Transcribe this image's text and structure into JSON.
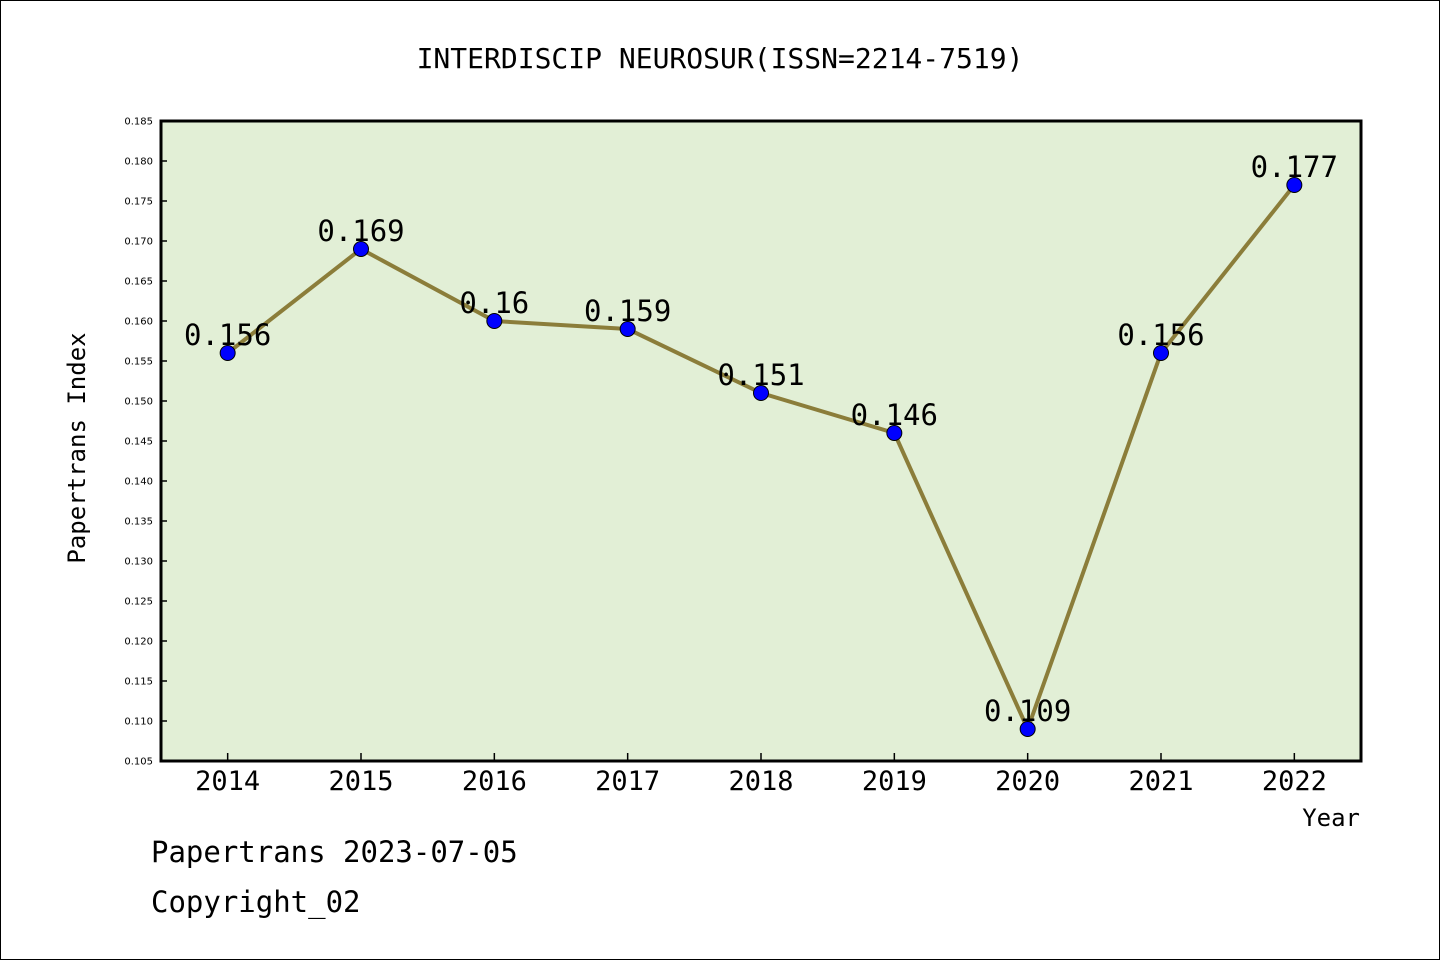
{
  "chart_data": {
    "type": "line",
    "title": "INTERDISCIP NEUROSUR(ISSN=2214-7519)",
    "xlabel": "Year",
    "ylabel": "Papertrans Index",
    "categories": [
      "2014",
      "2015",
      "2016",
      "2017",
      "2018",
      "2019",
      "2020",
      "2021",
      "2022"
    ],
    "values": [
      0.156,
      0.169,
      0.16,
      0.159,
      0.151,
      0.146,
      0.109,
      0.156,
      0.177
    ],
    "data_labels": [
      "0.156",
      "0.169",
      "0.16",
      "0.159",
      "0.151",
      "0.146",
      "0.109",
      "0.156",
      "0.177"
    ],
    "ylim": [
      0.105,
      0.185
    ],
    "yticks": [
      "0.105",
      "0.110",
      "0.115",
      "0.120",
      "0.125",
      "0.130",
      "0.135",
      "0.140",
      "0.145",
      "0.150",
      "0.155",
      "0.160",
      "0.165",
      "0.170",
      "0.175",
      "0.180",
      "0.185"
    ],
    "grid": false,
    "legend": "none",
    "colors": {
      "plot_background": "#e2efd6",
      "line": "#8b7d3a",
      "marker": "#0000ff"
    }
  },
  "footer": {
    "source": "Papertrans 2023-07-05",
    "copyright": "Copyright_02"
  }
}
